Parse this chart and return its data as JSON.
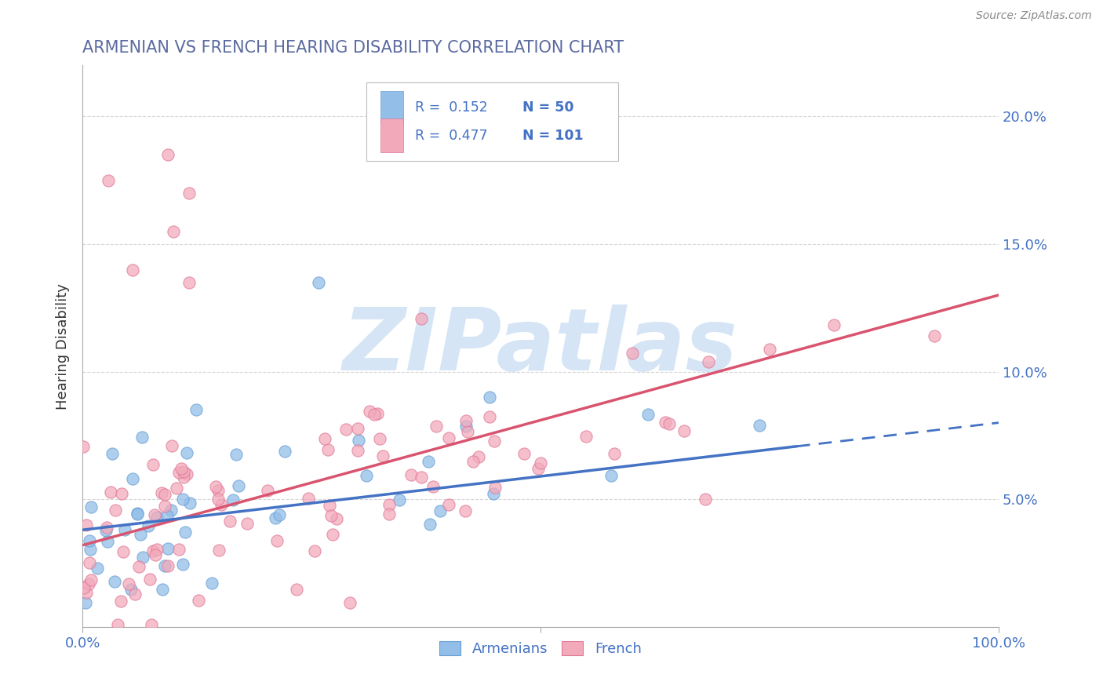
{
  "title": "ARMENIAN VS FRENCH HEARING DISABILITY CORRELATION CHART",
  "source": "Source: ZipAtlas.com",
  "ylabel": "Hearing Disability",
  "xlim": [
    0.0,
    1.0
  ],
  "ylim": [
    0.0,
    0.22
  ],
  "yticks": [
    0.0,
    0.05,
    0.1,
    0.15,
    0.2
  ],
  "armenian_color": "#92BEE8",
  "armenian_edge_color": "#6A9FD4",
  "french_color": "#F2AABB",
  "french_edge_color": "#E07898",
  "armenian_line_color": "#4472C4",
  "french_line_color": "#D9546E",
  "title_color": "#5B6BA0",
  "axis_label_color": "#333333",
  "axis_tick_color": "#4472C4",
  "watermark": "ZIPatlas",
  "watermark_color": "#D5E5F5",
  "legend_R_armenian": "R =  0.152",
  "legend_N_armenian": "N = 50",
  "legend_R_french": "R =  0.477",
  "legend_N_french": "N = 101",
  "legend_label_armenian": "Armenians",
  "legend_label_french": "French",
  "background_color": "#FFFFFF",
  "grid_color": "#BBBBBB",
  "source_color": "#888888",
  "arm_intercept": 0.038,
  "arm_slope": 0.042,
  "fr_intercept": 0.032,
  "fr_slope": 0.098
}
